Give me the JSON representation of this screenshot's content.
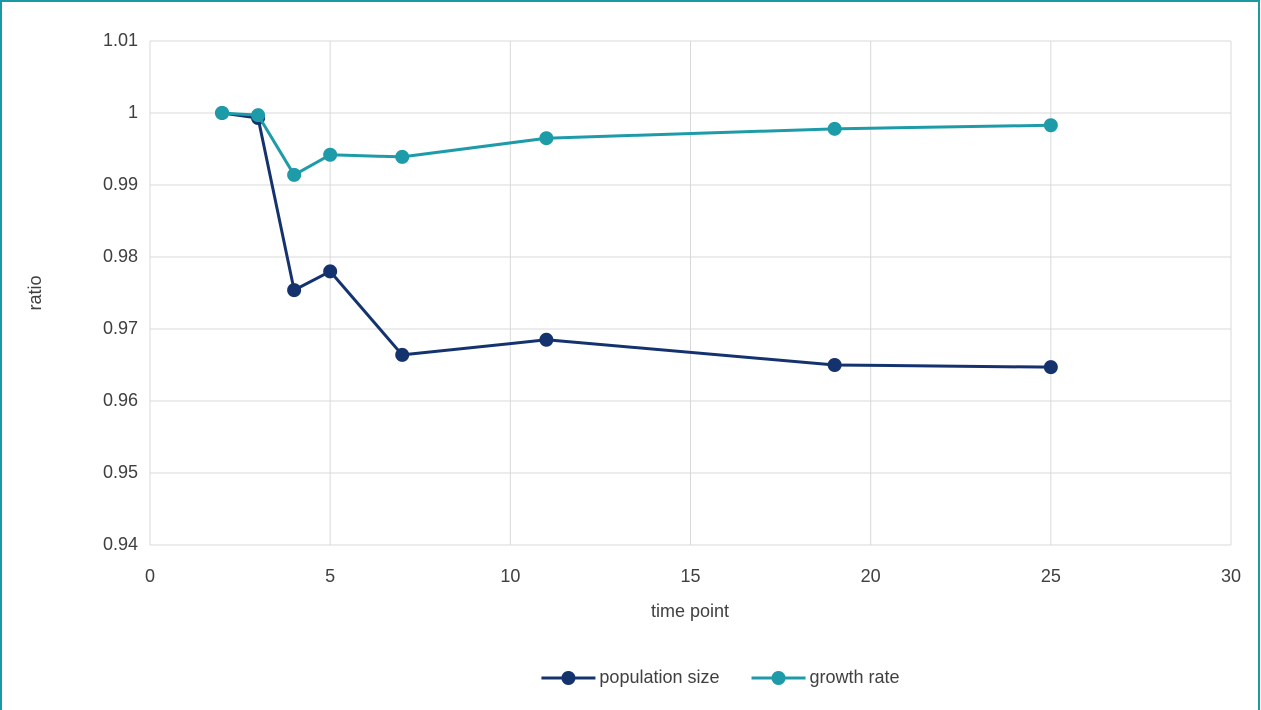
{
  "chart_data": {
    "type": "line",
    "x_label": "time point",
    "y_label": "ratio",
    "x": [
      2,
      3,
      4,
      5,
      7,
      11,
      19,
      25
    ],
    "series": [
      {
        "name": "population size",
        "color": "#14336e",
        "values": [
          1.0,
          0.9993,
          0.9754,
          0.978,
          0.9664,
          0.9685,
          0.965,
          0.9647
        ]
      },
      {
        "name": "growth rate",
        "color": "#1e9ba8",
        "values": [
          1.0,
          0.9997,
          0.9914,
          0.9942,
          0.9939,
          0.9965,
          0.9978,
          0.9983
        ]
      }
    ],
    "xlim": [
      0,
      30
    ],
    "xticks": [
      0,
      5,
      10,
      15,
      20,
      25,
      30
    ],
    "ylim": [
      0.94,
      1.01
    ],
    "yticks": [
      0.94,
      0.95,
      0.96,
      0.97,
      0.98,
      0.99,
      1,
      1.01
    ],
    "grid": true,
    "legend": "bottom"
  }
}
